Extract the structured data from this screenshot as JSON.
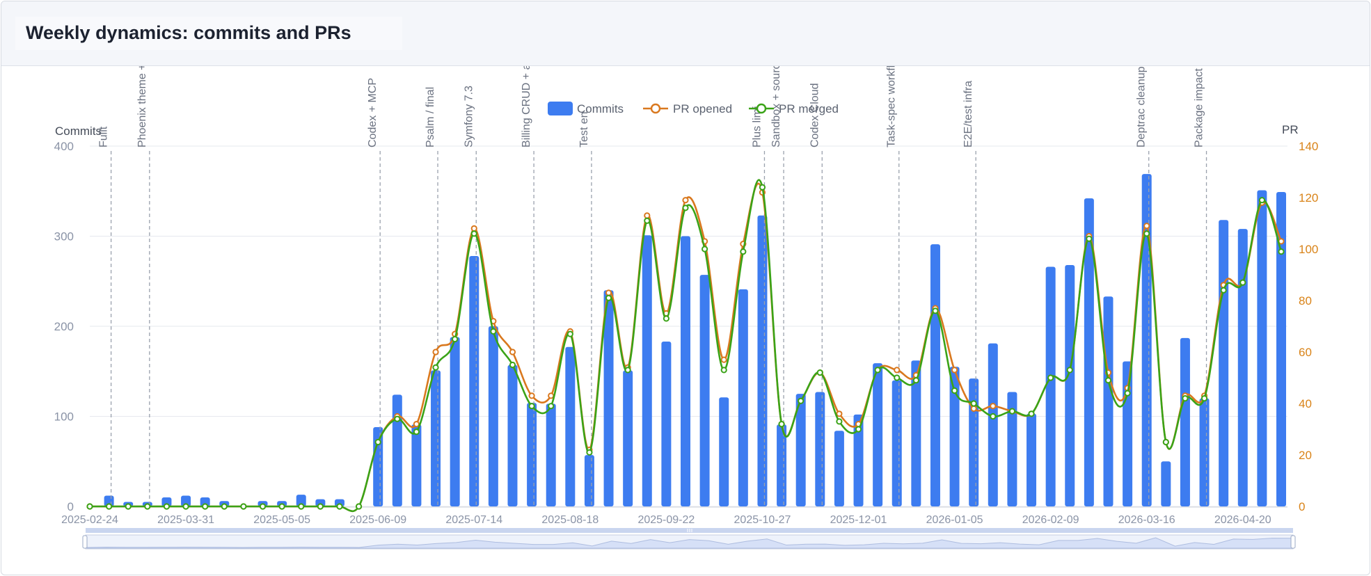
{
  "title": "Weekly dynamics: commits and PRs",
  "colors": {
    "commits": "#3d7cf0",
    "opened": "#d9781e",
    "merged": "#3aa317",
    "grid": "#e6e8ee",
    "axis_text": "#8a93a6",
    "right_axis_text": "#d98318"
  },
  "chart_data": {
    "type": "bar",
    "legend": [
      "Commits",
      "PR opened",
      "PR merged"
    ],
    "y_left_label": "Commits",
    "y_right_label": "PR",
    "y_left_ticks": [
      "0",
      "100",
      "200",
      "300",
      "400"
    ],
    "y_right_ticks": [
      "0",
      "20",
      "40",
      "60",
      "80",
      "100",
      "120",
      "140"
    ],
    "ylim_left": [
      0,
      400
    ],
    "ylim_right": [
      0,
      140
    ],
    "x_tick_labels": [
      "2025-02-24",
      "2025-03-31",
      "2025-05-05",
      "2025-06-09",
      "2025-07-14",
      "2025-08-18",
      "2025-09-22",
      "2025-10-27",
      "2025-12-01",
      "2026-01-05",
      "2026-02-09",
      "2026-03-16",
      "2026-04-20"
    ],
    "x_tick_index": [
      0,
      5,
      10,
      15,
      20,
      25,
      30,
      35,
      40,
      45,
      50,
      55,
      60
    ],
    "commits": [
      0,
      12,
      5,
      5,
      10,
      12,
      10,
      6,
      0,
      6,
      6,
      13,
      8,
      8,
      0,
      88,
      124,
      91,
      151,
      188,
      278,
      200,
      157,
      115,
      114,
      177,
      57,
      240,
      151,
      301,
      183,
      300,
      257,
      121,
      241,
      323,
      91,
      125,
      127,
      84,
      102,
      159,
      140,
      162,
      291,
      155,
      142,
      181,
      127,
      103,
      266,
      268,
      342,
      233,
      161,
      369,
      50,
      187,
      120,
      318,
      308,
      351,
      349
    ],
    "pr_opened": [
      0,
      0,
      0,
      0,
      0,
      0,
      0,
      0,
      0,
      0,
      0,
      0,
      0,
      0,
      0,
      25,
      35,
      32,
      60,
      67,
      108,
      72,
      60,
      43,
      43,
      68,
      22,
      83,
      54,
      113,
      75,
      119,
      103,
      57,
      102,
      122,
      32,
      41,
      52,
      36,
      32,
      53,
      53,
      51,
      77,
      53,
      38,
      39,
      37,
      36,
      50,
      53,
      105,
      52,
      46,
      109,
      25,
      43,
      43,
      86,
      87,
      118,
      103
    ],
    "pr_merged": [
      0,
      0,
      0,
      0,
      0,
      0,
      0,
      0,
      0,
      0,
      0,
      0,
      0,
      0,
      0,
      25,
      34,
      29,
      54,
      65,
      106,
      68,
      55,
      39,
      39,
      67,
      21,
      81,
      53,
      111,
      73,
      116,
      100,
      53,
      99,
      124,
      32,
      41,
      52,
      33,
      30,
      53,
      50,
      49,
      76,
      45,
      40,
      35,
      37,
      36,
      50,
      53,
      104,
      49,
      44,
      106,
      25,
      42,
      42,
      84,
      87,
      119,
      99
    ],
    "annotations": [
      {
        "index": 1,
        "label": "Fullt"
      },
      {
        "index": 3,
        "label": "Phoenix theme + au"
      },
      {
        "index": 15,
        "label": "Codex + MCP"
      },
      {
        "index": 18,
        "label": "Psalm / final"
      },
      {
        "index": 20,
        "label": "Symfony 7.3"
      },
      {
        "index": 23,
        "label": "Billing CRUD + access"
      },
      {
        "index": 26,
        "label": "Test en"
      },
      {
        "index": 35,
        "label": "Plus limi"
      },
      {
        "index": 36,
        "label": "Sandbox + sourc"
      },
      {
        "index": 38,
        "label": "Codex Cloud"
      },
      {
        "index": 42,
        "label": "Task-spec workflow"
      },
      {
        "index": 46,
        "label": "E2E/test infra"
      },
      {
        "index": 55,
        "label": "Deptrac cleanup wa"
      },
      {
        "index": 58,
        "label": "Package impact"
      }
    ]
  }
}
